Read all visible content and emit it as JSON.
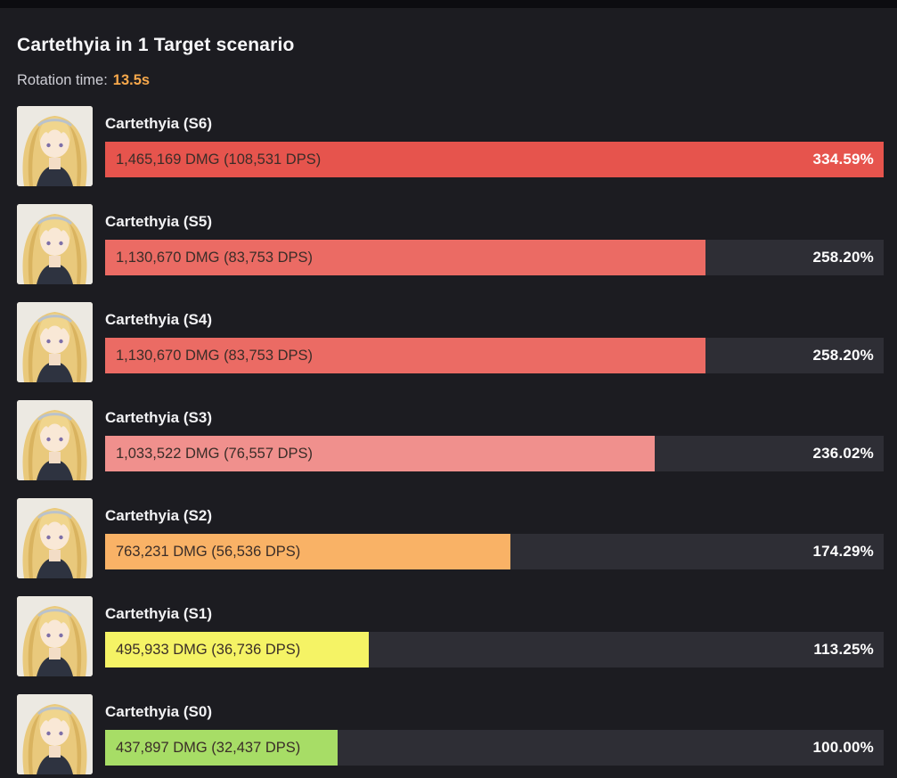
{
  "page": {
    "title": "Cartethyia in 1 Target scenario",
    "rotation_label": "Rotation time:",
    "rotation_value": "13.5s",
    "accent_color": "#f7a84b",
    "background_color": "#1c1c21",
    "track_color": "#2e2e35"
  },
  "chart_data": {
    "type": "bar",
    "orientation": "horizontal",
    "title": "Cartethyia in 1 Target scenario",
    "rotation_time": "13.5s",
    "max_percent": 334.59,
    "unit": "percent of S0 damage",
    "rows": [
      {
        "label": "Cartethyia (S6)",
        "bar_text": "1,465,169 DMG (108,531 DPS)",
        "damage": 1465169,
        "dps": 108531,
        "percent": 334.59,
        "percent_label": "334.59%",
        "color": "#e6544d"
      },
      {
        "label": "Cartethyia (S5)",
        "bar_text": "1,130,670 DMG (83,753 DPS)",
        "damage": 1130670,
        "dps": 83753,
        "percent": 258.2,
        "percent_label": "258.20%",
        "color": "#eb6b64"
      },
      {
        "label": "Cartethyia (S4)",
        "bar_text": "1,130,670 DMG (83,753 DPS)",
        "damage": 1130670,
        "dps": 83753,
        "percent": 258.2,
        "percent_label": "258.20%",
        "color": "#eb6b64"
      },
      {
        "label": "Cartethyia (S3)",
        "bar_text": "1,033,522 DMG (76,557 DPS)",
        "damage": 1033522,
        "dps": 76557,
        "percent": 236.02,
        "percent_label": "236.02%",
        "color": "#f0908d"
      },
      {
        "label": "Cartethyia (S2)",
        "bar_text": "763,231 DMG (56,536 DPS)",
        "damage": 763231,
        "dps": 56536,
        "percent": 174.29,
        "percent_label": "174.29%",
        "color": "#f9b266"
      },
      {
        "label": "Cartethyia (S1)",
        "bar_text": "495,933 DMG (36,736 DPS)",
        "damage": 495933,
        "dps": 36736,
        "percent": 113.25,
        "percent_label": "113.25%",
        "color": "#f5f365"
      },
      {
        "label": "Cartethyia (S0)",
        "bar_text": "437,897 DMG (32,437 DPS)",
        "damage": 437897,
        "dps": 32437,
        "percent": 100.0,
        "percent_label": "100.00%",
        "color": "#a7dd66"
      }
    ]
  }
}
